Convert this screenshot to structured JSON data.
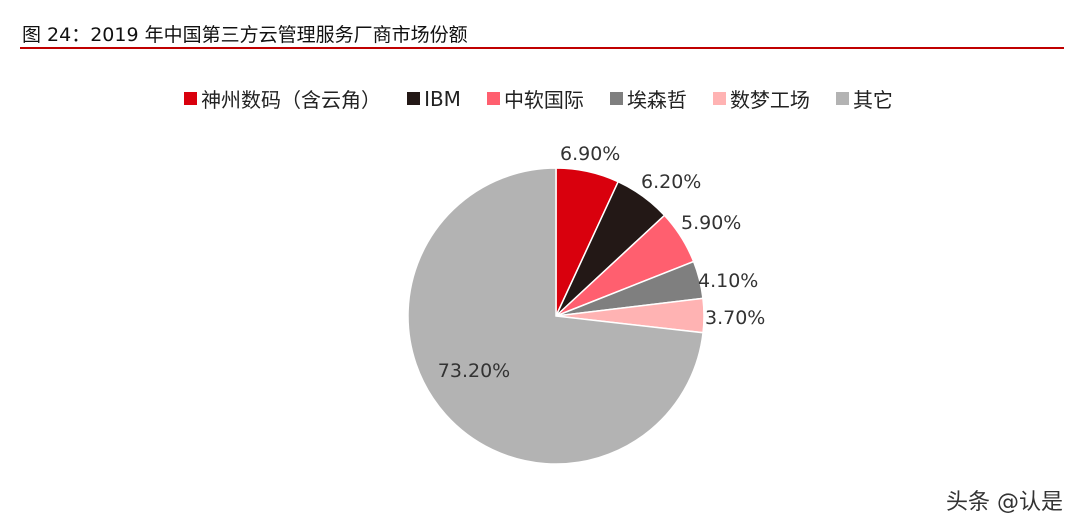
{
  "figure_title": "图 24：2019 年中国第三方云管理服务厂商市场份额",
  "watermark": "头条 @认是",
  "chart_data": {
    "type": "pie",
    "title": "",
    "legend_position": "top",
    "slices": [
      {
        "name": "神州数码（含云角）",
        "value": 6.9,
        "label": "6.90%",
        "color": "#d9000d"
      },
      {
        "name": "IBM",
        "value": 6.2,
        "label": "6.20%",
        "color": "#231816"
      },
      {
        "name": "中软国际",
        "value": 5.9,
        "label": "5.90%",
        "color": "#ff5f6f"
      },
      {
        "name": "埃森哲",
        "value": 4.1,
        "label": "4.10%",
        "color": "#7f7f7f"
      },
      {
        "name": "数梦工场",
        "value": 3.7,
        "label": "3.70%",
        "color": "#ffb3b3"
      },
      {
        "name": "其它",
        "value": 73.2,
        "label": "73.20%",
        "color": "#b3b3b3"
      }
    ]
  }
}
